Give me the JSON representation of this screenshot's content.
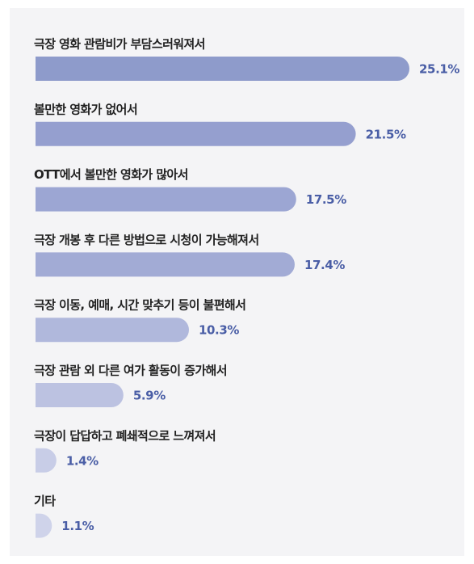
{
  "chart_data": {
    "type": "bar",
    "orientation": "horizontal",
    "categories": [
      "극장 영화 관람비가 부담스러워져서",
      "볼만한 영화가 없어서",
      "OTT에서 볼만한 영화가 많아서",
      "극장 개봉 후 다른 방법으로 시청이 가능해져서",
      "극장 이동, 예매, 시간 맞추기 등이 불편해서",
      "극장 관람 외 다른 여가 활동이 증가해서",
      "극장이 답답하고 폐쇄적으로 느껴져서",
      "기타"
    ],
    "values": [
      25.1,
      21.5,
      17.5,
      17.4,
      10.3,
      5.9,
      1.4,
      1.1
    ],
    "value_labels": [
      "25.1%",
      "21.5%",
      "17.5%",
      "17.4%",
      "10.3%",
      "5.9%",
      "1.4%",
      "1.1%"
    ],
    "colors": [
      "#8e9bcb",
      "#959fcf",
      "#9ca6d3",
      "#a2abd5",
      "#b0b8dc",
      "#bcc2e1",
      "#c8cde7",
      "#cfd3ea"
    ]
  }
}
